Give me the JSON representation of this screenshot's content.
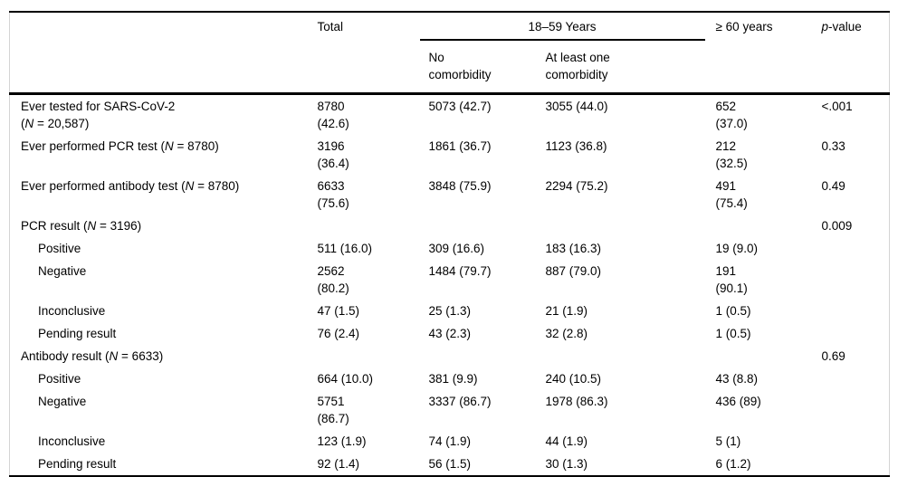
{
  "table": {
    "header": {
      "col_total": "Total",
      "col_group_18_59": "18–59 Years",
      "col_no_comorbidity": [
        "No",
        "comorbidity"
      ],
      "col_at_least_one": [
        "At least one",
        "comorbidity"
      ],
      "col_ge60": "≥ 60 years",
      "p_italic": "p",
      "p_rest": "-value"
    },
    "rows": [
      {
        "indent": false,
        "label": [
          "Ever tested for SARS-CoV-2",
          "(N = 20,587)"
        ],
        "total": [
          "8780",
          "(42.6)"
        ],
        "no_comorbidity": [
          "5073 (42.7)"
        ],
        "at_least_one": [
          "3055 (44.0)"
        ],
        "ge60": [
          "652",
          "(37.0)"
        ],
        "p": [
          "<.001"
        ]
      },
      {
        "indent": false,
        "label": [
          "Ever performed PCR test (N = 8780)"
        ],
        "total": [
          "3196",
          "(36.4)"
        ],
        "no_comorbidity": [
          "1861 (36.7)"
        ],
        "at_least_one": [
          "1123 (36.8)"
        ],
        "ge60": [
          "212",
          "(32.5)"
        ],
        "p": [
          "0.33"
        ]
      },
      {
        "indent": false,
        "label": [
          "Ever performed antibody test (N = 8780)"
        ],
        "total": [
          "6633",
          "(75.6)"
        ],
        "no_comorbidity": [
          "3848 (75.9)"
        ],
        "at_least_one": [
          "2294 (75.2)"
        ],
        "ge60": [
          "491",
          "(75.4)"
        ],
        "p": [
          "0.49"
        ]
      },
      {
        "indent": false,
        "label": [
          "PCR result (N = 3196)"
        ],
        "total": [],
        "no_comorbidity": [],
        "at_least_one": [],
        "ge60": [],
        "p": [
          "0.009"
        ]
      },
      {
        "indent": true,
        "label": [
          "Positive"
        ],
        "total": [
          "511 (16.0)"
        ],
        "no_comorbidity": [
          "309 (16.6)"
        ],
        "at_least_one": [
          "183 (16.3)"
        ],
        "ge60": [
          "19 (9.0)"
        ],
        "p": []
      },
      {
        "indent": true,
        "label": [
          "Negative"
        ],
        "total": [
          "2562",
          "(80.2)"
        ],
        "no_comorbidity": [
          "1484 (79.7)"
        ],
        "at_least_one": [
          "887 (79.0)"
        ],
        "ge60": [
          "191",
          "(90.1)"
        ],
        "p": []
      },
      {
        "indent": true,
        "label": [
          "Inconclusive"
        ],
        "total": [
          "47 (1.5)"
        ],
        "no_comorbidity": [
          "25 (1.3)"
        ],
        "at_least_one": [
          "21 (1.9)"
        ],
        "ge60": [
          "1 (0.5)"
        ],
        "p": []
      },
      {
        "indent": true,
        "label": [
          "Pending result"
        ],
        "total": [
          "76 (2.4)"
        ],
        "no_comorbidity": [
          "43 (2.3)"
        ],
        "at_least_one": [
          "32 (2.8)"
        ],
        "ge60": [
          "1 (0.5)"
        ],
        "p": []
      },
      {
        "indent": false,
        "label": [
          "Antibody result (N = 6633)"
        ],
        "total": [],
        "no_comorbidity": [],
        "at_least_one": [],
        "ge60": [],
        "p": [
          "0.69"
        ]
      },
      {
        "indent": true,
        "label": [
          "Positive"
        ],
        "total": [
          "664 (10.0)"
        ],
        "no_comorbidity": [
          "381 (9.9)"
        ],
        "at_least_one": [
          "240 (10.5)"
        ],
        "ge60": [
          "43 (8.8)"
        ],
        "p": []
      },
      {
        "indent": true,
        "label": [
          "Negative"
        ],
        "total": [
          "5751",
          "(86.7)"
        ],
        "no_comorbidity": [
          "3337 (86.7)"
        ],
        "at_least_one": [
          "1978 (86.3)"
        ],
        "ge60": [
          "436 (89)"
        ],
        "p": []
      },
      {
        "indent": true,
        "label": [
          "Inconclusive"
        ],
        "total": [
          "123 (1.9)"
        ],
        "no_comorbidity": [
          "74 (1.9)"
        ],
        "at_least_one": [
          "44 (1.9)"
        ],
        "ge60": [
          "5 (1)"
        ],
        "p": []
      },
      {
        "indent": true,
        "label": [
          "Pending result"
        ],
        "total": [
          "92 (1.4)"
        ],
        "no_comorbidity": [
          "56 (1.5)"
        ],
        "at_least_one": [
          "30 (1.3)"
        ],
        "ge60": [
          "6 (1.2)"
        ],
        "p": []
      }
    ]
  }
}
